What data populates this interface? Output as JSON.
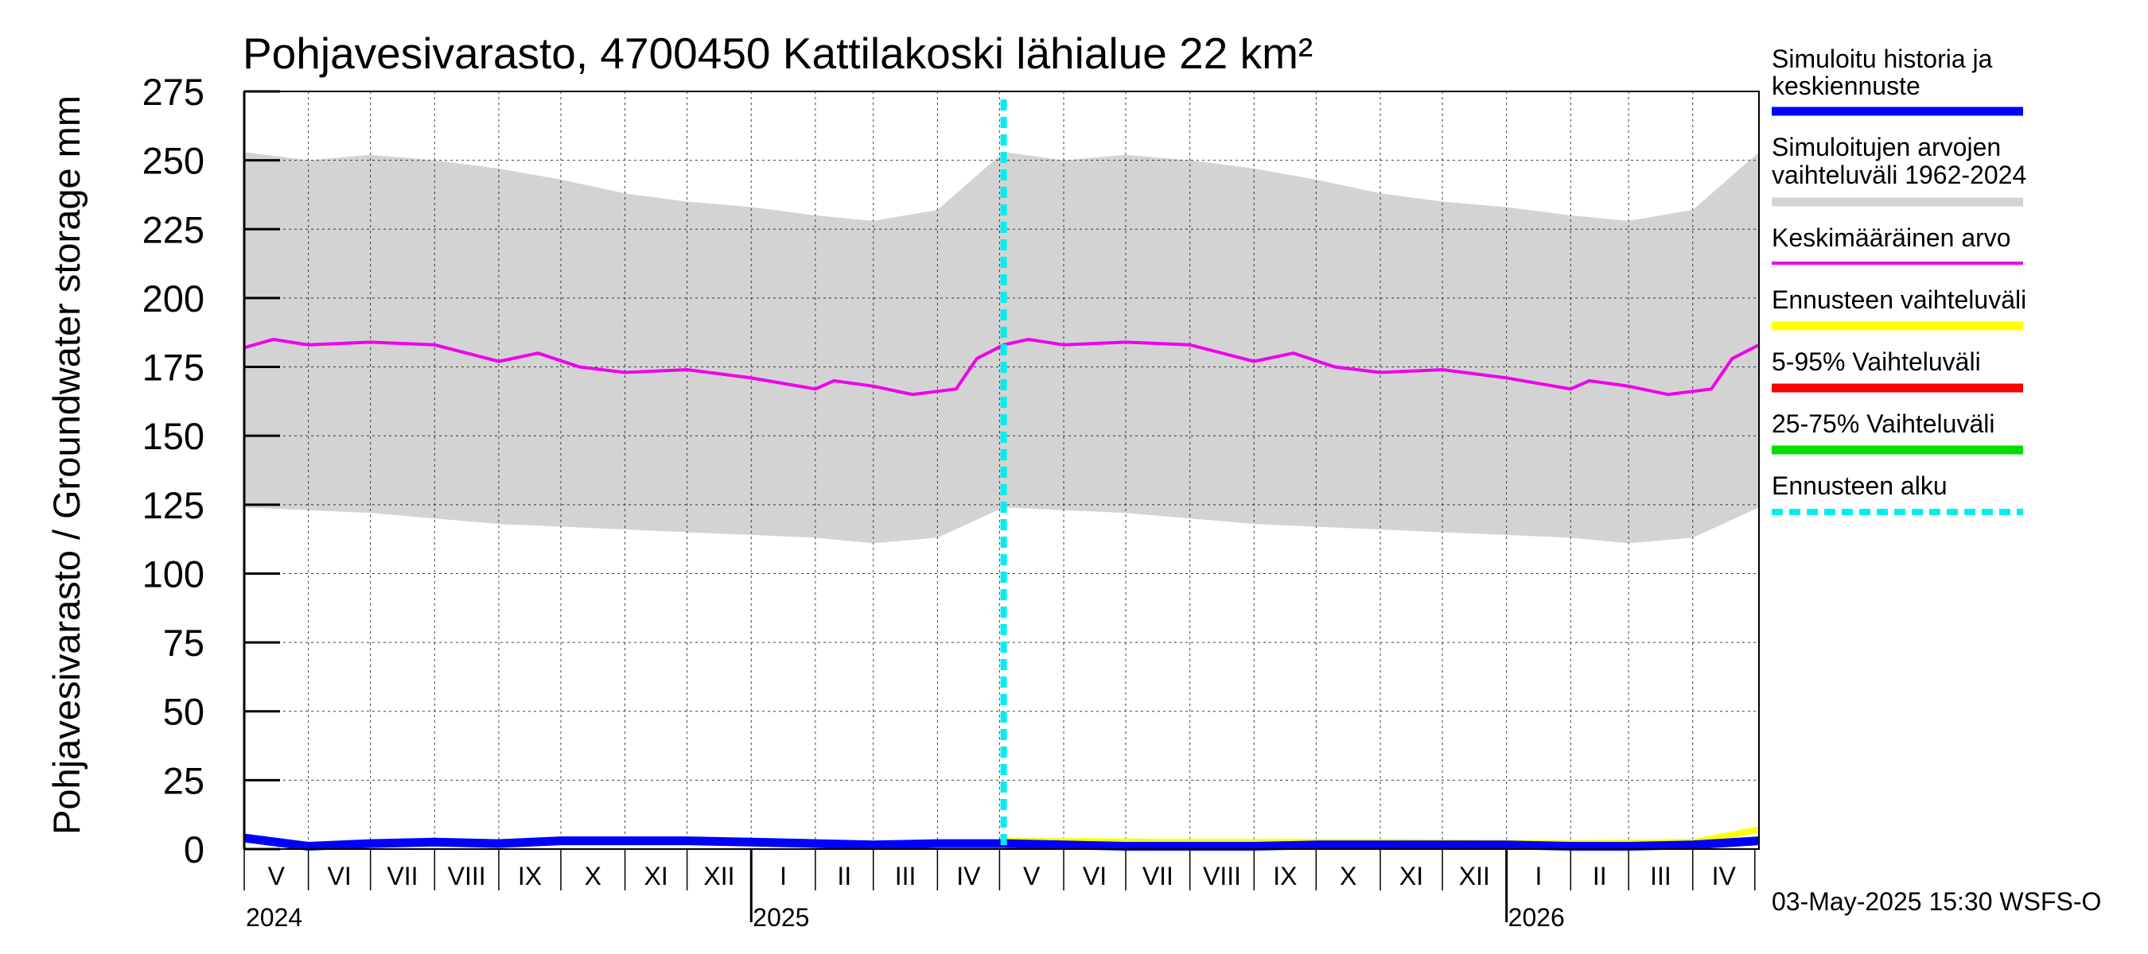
{
  "chart_data": {
    "type": "area",
    "title": "Pohjavesivarasto, 4700450 Kattilakoski lähialue 22 km²",
    "ylabel": "Pohjavesivarasto / Groundwater storage   mm",
    "ylim": [
      0,
      275
    ],
    "yticks": [
      "0",
      "25",
      "50",
      "75",
      "100",
      "125",
      "150",
      "175",
      "200",
      "225",
      "250",
      "275"
    ],
    "grid": true,
    "x_range": [
      "2024-05-01",
      "2026-05-03"
    ],
    "months": [
      "V",
      "VI",
      "VII",
      "VIII",
      "IX",
      "X",
      "XI",
      "XII",
      "I",
      "II",
      "III",
      "IV",
      "V",
      "VI",
      "VII",
      "VIII",
      "IX",
      "X",
      "XI",
      "XII",
      "I",
      "II",
      "III",
      "IV"
    ],
    "years": [
      "2024",
      "2025",
      "2026"
    ],
    "forecast_start": "2025-05-03",
    "legend_position": "right",
    "series": [
      {
        "name": "Simuloitu historia ja keskiennuste",
        "color": "#0000ff",
        "type": "line",
        "values": [
          {
            "x": "2024-05-01",
            "y": 4
          },
          {
            "x": "2024-06-01",
            "y": 1
          },
          {
            "x": "2024-07-01",
            "y": 2
          },
          {
            "x": "2024-08-01",
            "y": 2.5
          },
          {
            "x": "2024-09-01",
            "y": 2
          },
          {
            "x": "2024-10-01",
            "y": 3
          },
          {
            "x": "2024-11-01",
            "y": 3
          },
          {
            "x": "2024-12-01",
            "y": 3
          },
          {
            "x": "2025-01-01",
            "y": 2.5
          },
          {
            "x": "2025-02-01",
            "y": 2
          },
          {
            "x": "2025-03-01",
            "y": 1.5
          },
          {
            "x": "2025-04-01",
            "y": 2
          },
          {
            "x": "2025-05-03",
            "y": 2
          },
          {
            "x": "2025-06-01",
            "y": 1.5
          },
          {
            "x": "2025-07-01",
            "y": 1
          },
          {
            "x": "2025-08-01",
            "y": 1
          },
          {
            "x": "2025-09-01",
            "y": 1
          },
          {
            "x": "2025-10-01",
            "y": 1.5
          },
          {
            "x": "2025-11-01",
            "y": 1.5
          },
          {
            "x": "2025-12-01",
            "y": 1.5
          },
          {
            "x": "2026-01-01",
            "y": 1.5
          },
          {
            "x": "2026-02-01",
            "y": 1
          },
          {
            "x": "2026-03-01",
            "y": 1
          },
          {
            "x": "2026-04-01",
            "y": 1.5
          },
          {
            "x": "2026-05-03",
            "y": 3
          }
        ]
      },
      {
        "name": "Simuloitujen arvojen vaihteluväli 1962-2024",
        "color": "#d3d3d3",
        "type": "band",
        "upper": [
          {
            "x": "2024-05-01",
            "y": 253
          },
          {
            "x": "2024-06-01",
            "y": 250
          },
          {
            "x": "2024-07-01",
            "y": 252
          },
          {
            "x": "2024-08-01",
            "y": 250
          },
          {
            "x": "2024-09-01",
            "y": 247
          },
          {
            "x": "2024-10-01",
            "y": 243
          },
          {
            "x": "2024-11-01",
            "y": 238
          },
          {
            "x": "2024-12-01",
            "y": 235
          },
          {
            "x": "2025-01-01",
            "y": 233
          },
          {
            "x": "2025-02-01",
            "y": 230
          },
          {
            "x": "2025-03-01",
            "y": 228
          },
          {
            "x": "2025-04-01",
            "y": 232
          },
          {
            "x": "2025-05-03",
            "y": 253
          },
          {
            "x": "2025-06-01",
            "y": 250
          },
          {
            "x": "2025-07-01",
            "y": 252
          },
          {
            "x": "2025-08-01",
            "y": 250
          },
          {
            "x": "2025-09-01",
            "y": 247
          },
          {
            "x": "2025-10-01",
            "y": 243
          },
          {
            "x": "2025-11-01",
            "y": 238
          },
          {
            "x": "2025-12-01",
            "y": 235
          },
          {
            "x": "2026-01-01",
            "y": 233
          },
          {
            "x": "2026-02-01",
            "y": 230
          },
          {
            "x": "2026-03-01",
            "y": 228
          },
          {
            "x": "2026-04-01",
            "y": 232
          },
          {
            "x": "2026-05-03",
            "y": 253
          }
        ],
        "lower": [
          {
            "x": "2024-05-01",
            "y": 124
          },
          {
            "x": "2024-06-01",
            "y": 123
          },
          {
            "x": "2024-07-01",
            "y": 122
          },
          {
            "x": "2024-08-01",
            "y": 120
          },
          {
            "x": "2024-09-01",
            "y": 118
          },
          {
            "x": "2024-10-01",
            "y": 117
          },
          {
            "x": "2024-11-01",
            "y": 116
          },
          {
            "x": "2024-12-01",
            "y": 115
          },
          {
            "x": "2025-01-01",
            "y": 114
          },
          {
            "x": "2025-02-01",
            "y": 113
          },
          {
            "x": "2025-03-01",
            "y": 111
          },
          {
            "x": "2025-04-01",
            "y": 113
          },
          {
            "x": "2025-05-03",
            "y": 124
          },
          {
            "x": "2025-06-01",
            "y": 123
          },
          {
            "x": "2025-07-01",
            "y": 122
          },
          {
            "x": "2025-08-01",
            "y": 120
          },
          {
            "x": "2025-09-01",
            "y": 118
          },
          {
            "x": "2025-10-01",
            "y": 117
          },
          {
            "x": "2025-11-01",
            "y": 116
          },
          {
            "x": "2025-12-01",
            "y": 115
          },
          {
            "x": "2026-01-01",
            "y": 114
          },
          {
            "x": "2026-02-01",
            "y": 113
          },
          {
            "x": "2026-03-01",
            "y": 111
          },
          {
            "x": "2026-04-01",
            "y": 113
          },
          {
            "x": "2026-05-03",
            "y": 124
          }
        ]
      },
      {
        "name": "Keskimääräinen arvo",
        "color": "#ee00ee",
        "type": "line",
        "values": [
          {
            "x": "2024-05-01",
            "y": 182
          },
          {
            "x": "2024-05-15",
            "y": 185
          },
          {
            "x": "2024-06-01",
            "y": 183
          },
          {
            "x": "2024-07-01",
            "y": 184
          },
          {
            "x": "2024-08-01",
            "y": 183
          },
          {
            "x": "2024-09-01",
            "y": 177
          },
          {
            "x": "2024-09-20",
            "y": 180
          },
          {
            "x": "2024-10-10",
            "y": 175
          },
          {
            "x": "2024-11-01",
            "y": 173
          },
          {
            "x": "2024-12-01",
            "y": 174
          },
          {
            "x": "2025-01-01",
            "y": 171
          },
          {
            "x": "2025-02-01",
            "y": 167
          },
          {
            "x": "2025-02-10",
            "y": 170
          },
          {
            "x": "2025-03-01",
            "y": 168
          },
          {
            "x": "2025-03-20",
            "y": 165
          },
          {
            "x": "2025-04-10",
            "y": 167
          },
          {
            "x": "2025-04-20",
            "y": 178
          },
          {
            "x": "2025-05-03",
            "y": 183
          },
          {
            "x": "2025-05-15",
            "y": 185
          },
          {
            "x": "2025-06-01",
            "y": 183
          },
          {
            "x": "2025-07-01",
            "y": 184
          },
          {
            "x": "2025-08-01",
            "y": 183
          },
          {
            "x": "2025-09-01",
            "y": 177
          },
          {
            "x": "2025-09-20",
            "y": 180
          },
          {
            "x": "2025-10-10",
            "y": 175
          },
          {
            "x": "2025-11-01",
            "y": 173
          },
          {
            "x": "2025-12-01",
            "y": 174
          },
          {
            "x": "2026-01-01",
            "y": 171
          },
          {
            "x": "2026-02-01",
            "y": 167
          },
          {
            "x": "2026-02-10",
            "y": 170
          },
          {
            "x": "2026-03-01",
            "y": 168
          },
          {
            "x": "2026-03-20",
            "y": 165
          },
          {
            "x": "2026-04-10",
            "y": 167
          },
          {
            "x": "2026-04-20",
            "y": 178
          },
          {
            "x": "2026-05-03",
            "y": 183
          }
        ]
      },
      {
        "name": "Ennusteen vaihteluväli",
        "color": "#ffff00",
        "type": "line",
        "values": [
          {
            "x": "2025-05-03",
            "y": 3
          },
          {
            "x": "2025-08-01",
            "y": 2.5
          },
          {
            "x": "2025-11-01",
            "y": 2.5
          },
          {
            "x": "2026-02-01",
            "y": 2
          },
          {
            "x": "2026-04-01",
            "y": 2.5
          },
          {
            "x": "2026-05-03",
            "y": 7
          }
        ]
      },
      {
        "name": "5-95% Vaihteluväli",
        "color": "#ff0000",
        "type": "line",
        "values": []
      },
      {
        "name": "25-75% Vaihteluväli",
        "color": "#00dd00",
        "type": "line",
        "values": []
      },
      {
        "name": "Ennusteen alku",
        "color": "#00eeee",
        "type": "vline",
        "x": "2025-05-03"
      }
    ],
    "footer": "03-May-2025 15:30 WSFS-O"
  }
}
